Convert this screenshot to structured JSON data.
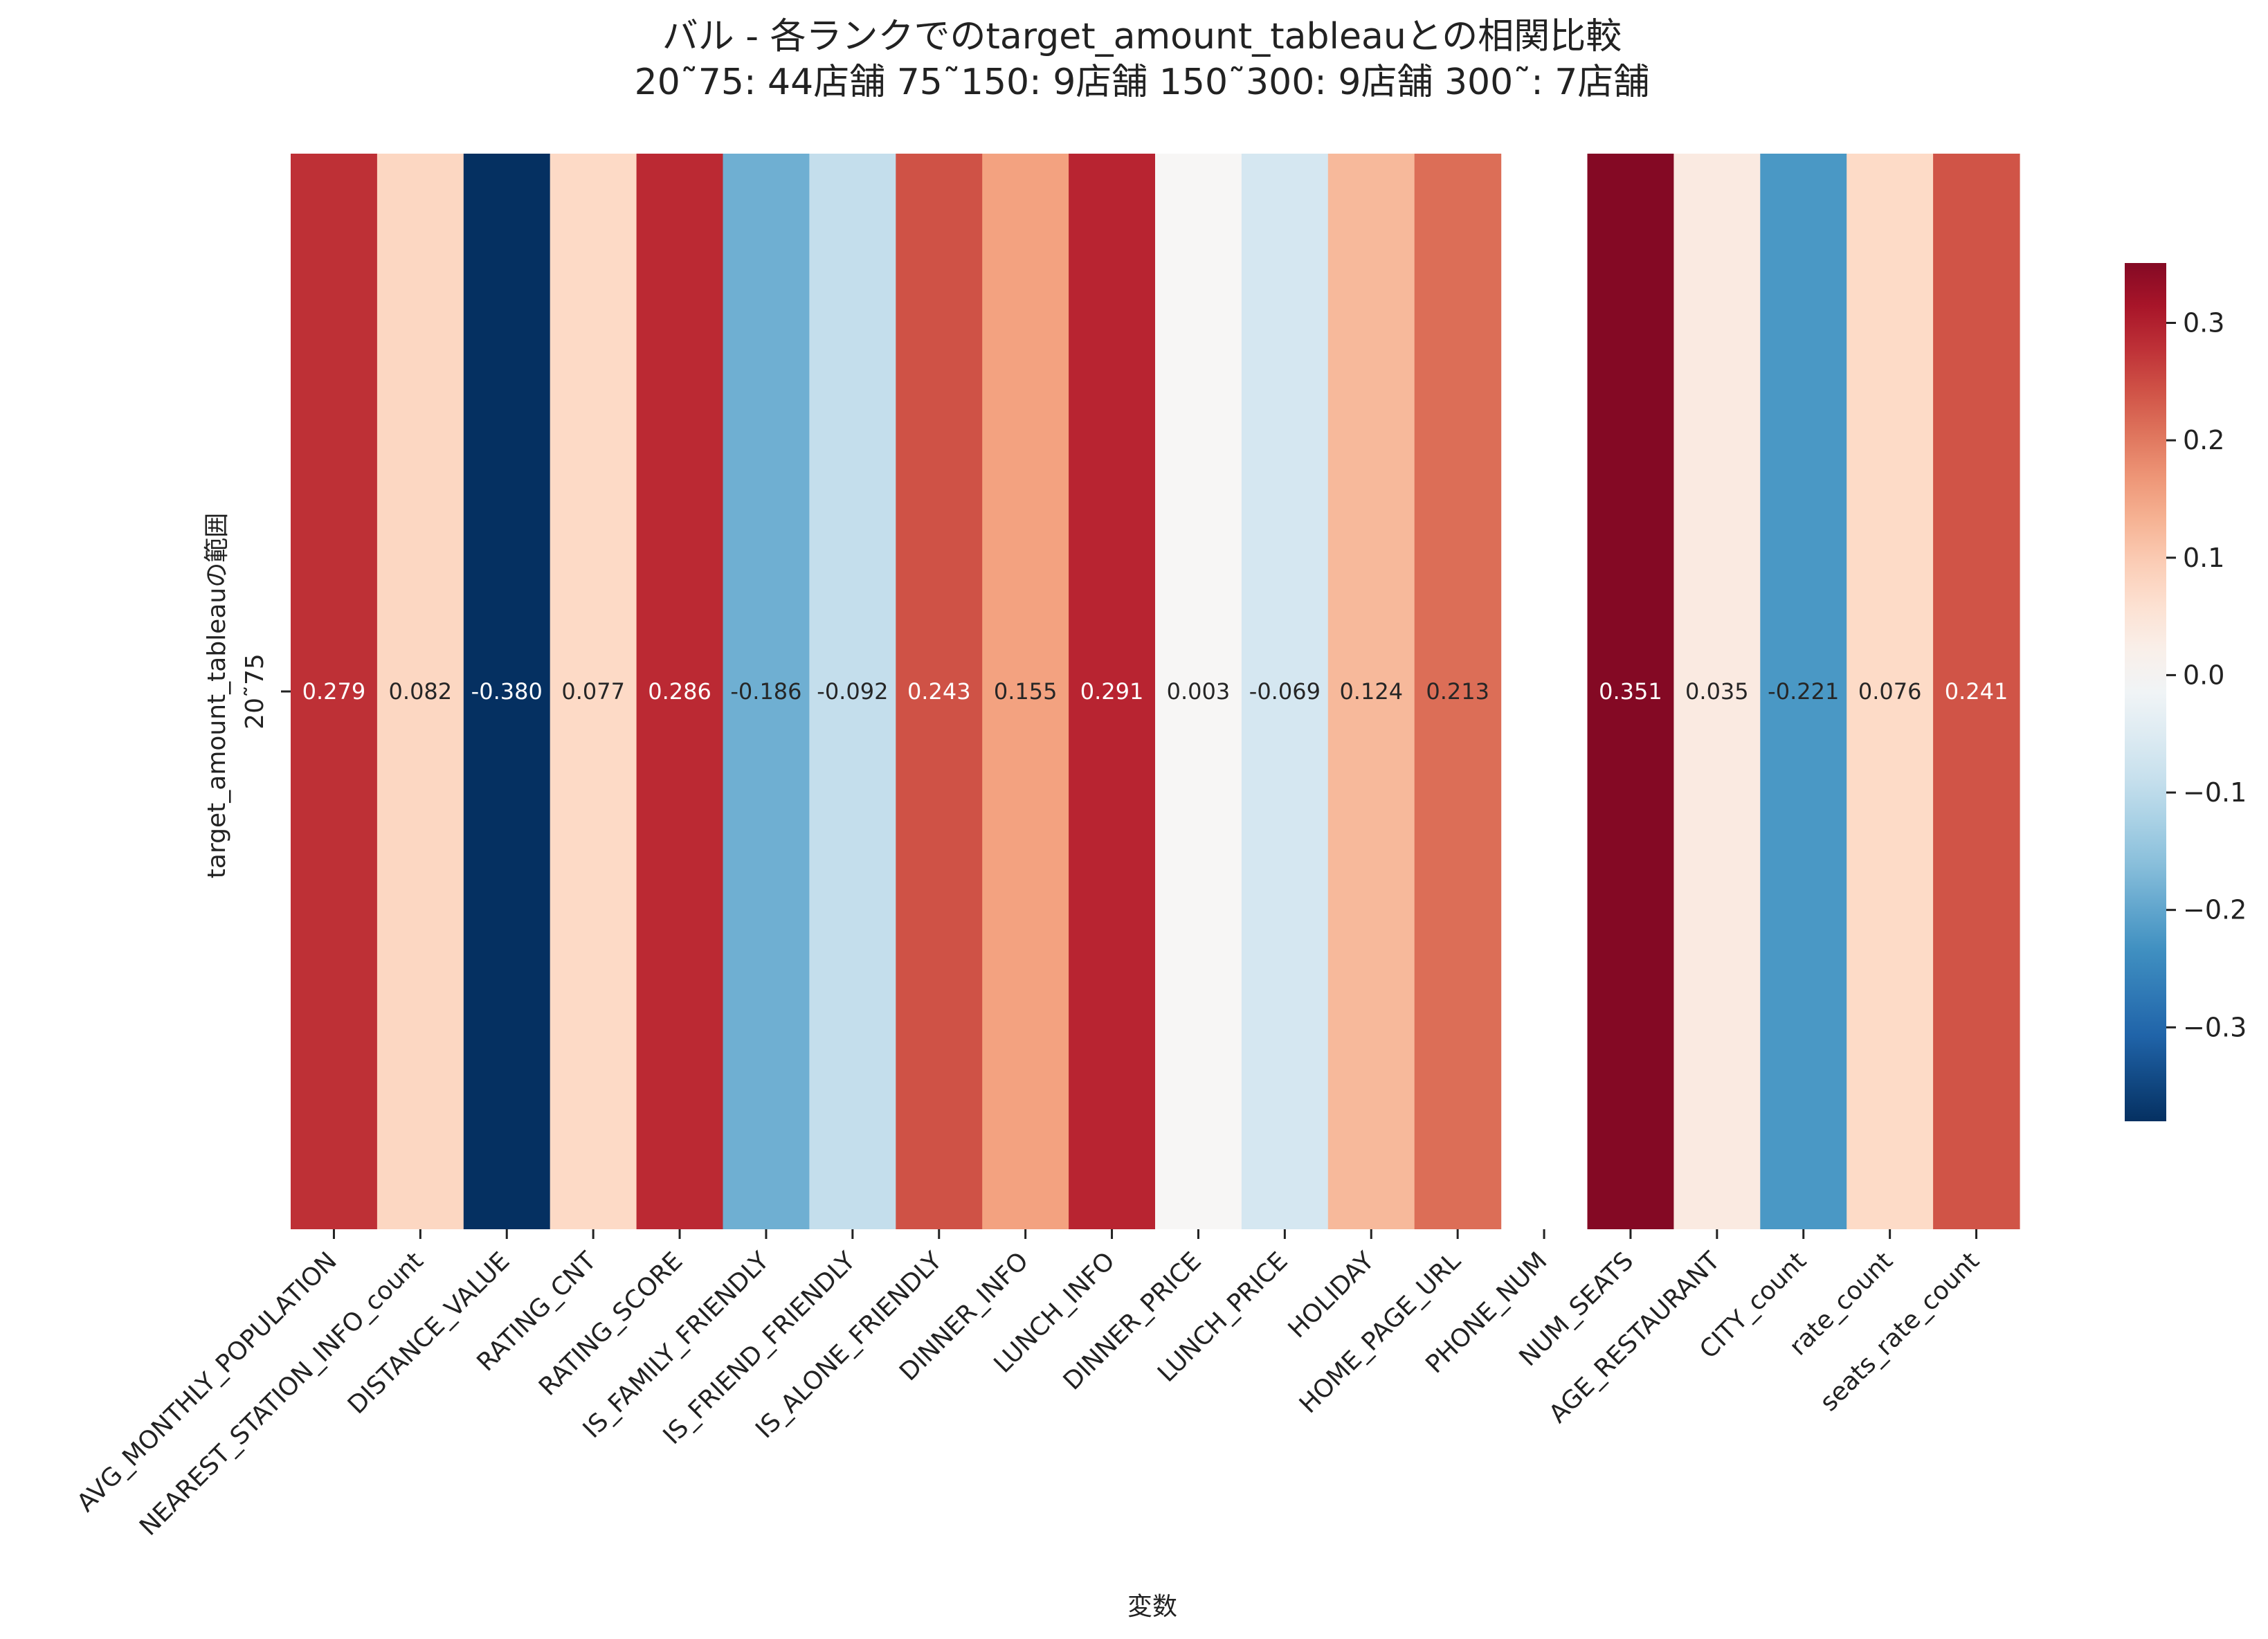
{
  "chart_data": {
    "type": "heatmap",
    "title_lines": [
      "バル - 各ランクでのtarget_amount_tableauとの相関比較",
      "20˜75: 44店舗  75˜150: 9店舗  150˜300: 9店舗  300˜: 7店舗"
    ],
    "xlabel": "変数",
    "ylabel": "target_amount_tableauの範囲",
    "rows": [
      "20˜75"
    ],
    "columns": [
      "AVG_MONTHLY_POPULATION",
      "NEAREST_STATION_INFO_count",
      "DISTANCE_VALUE",
      "RATING_CNT",
      "RATING_SCORE",
      "IS_FAMILY_FRIENDLY",
      "IS_FRIEND_FRIENDLY",
      "IS_ALONE_FRIENDLY",
      "DINNER_INFO",
      "LUNCH_INFO",
      "DINNER_PRICE",
      "LUNCH_PRICE",
      "HOLIDAY",
      "HOME_PAGE_URL",
      "PHONE_NUM",
      "NUM_SEATS",
      "AGE_RESTAURANT",
      "CITY_count",
      "rate_count",
      "seats_rate_count"
    ],
    "values": [
      [
        0.279,
        0.082,
        -0.38,
        0.077,
        0.286,
        -0.186,
        -0.092,
        0.243,
        0.155,
        0.291,
        0.003,
        -0.069,
        0.124,
        0.213,
        null,
        0.351,
        0.035,
        -0.221,
        0.076,
        0.241
      ]
    ],
    "value_labels": [
      [
        "0.279",
        "0.082",
        "-0.380",
        "0.077",
        "0.286",
        "-0.186",
        "-0.092",
        "0.243",
        "0.155",
        "0.291",
        "0.003",
        "-0.069",
        "0.124",
        "0.213",
        "",
        "0.351",
        "0.035",
        "-0.221",
        "0.076",
        "0.241"
      ]
    ],
    "colormap": "RdBu_r",
    "vmin": -0.38,
    "vmax": 0.351,
    "colorbar_ticks": [
      0.3,
      0.2,
      0.1,
      0.0,
      -0.1,
      -0.2,
      -0.3
    ],
    "colorbar_tick_labels": [
      "0.3",
      "0.2",
      "0.1",
      "0.0",
      "−0.1",
      "−0.2",
      "−0.3"
    ],
    "grid": false
  }
}
